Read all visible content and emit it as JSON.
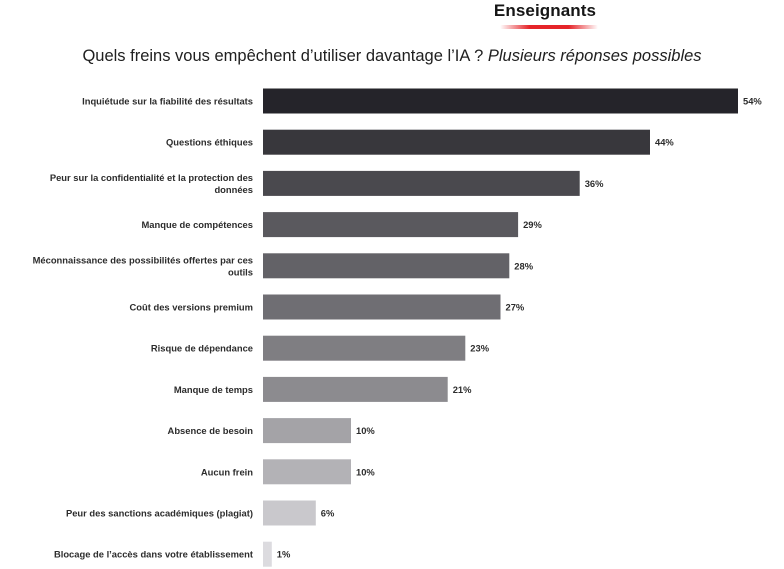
{
  "header": {
    "title": "Enseignants",
    "accent_color": "#e52429"
  },
  "question": {
    "main": "Quels freins vous empêchent d’utiliser davantage l’IA ? ",
    "note": "Plusieurs réponses possibles"
  },
  "chart_data": {
    "type": "bar",
    "orientation": "horizontal",
    "title": "Quels freins vous empêchent d’utiliser davantage l’IA ? Plusieurs réponses possibles",
    "value_suffix": "%",
    "xlim": [
      0,
      54
    ],
    "categories": [
      [
        "Inquiétude sur la fiabilité des résultats"
      ],
      [
        "Questions éthiques"
      ],
      [
        "Peur sur la confidentialité et la protection des",
        "données"
      ],
      [
        "Manque de compétences"
      ],
      [
        "Méconnaissance des possibilités offertes par ces",
        "outils"
      ],
      [
        "Coût des versions premium"
      ],
      [
        "Risque de dépendance"
      ],
      [
        "Manque de temps"
      ],
      [
        "Absence de besoin"
      ],
      [
        "Aucun frein"
      ],
      [
        "Peur des sanctions académiques (plagiat)"
      ],
      [
        "Blocage de l’accès dans votre établissement"
      ]
    ],
    "values": [
      54,
      44,
      36,
      29,
      28,
      27,
      23,
      21,
      10,
      10,
      6,
      1
    ],
    "labels": [
      "54%",
      "44%",
      "36%",
      "29%",
      "28%",
      "27%",
      "23%",
      "21%",
      "10%",
      "10%",
      "6%",
      "1%"
    ],
    "colors": [
      "#25242a",
      "#38373c",
      "#4a494e",
      "#5a595e",
      "#636267",
      "#6f6e73",
      "#7f7e82",
      "#8c8b8f",
      "#a4a3a7",
      "#b3b2b6",
      "#c9c8cc",
      "#dcdbdf"
    ]
  }
}
